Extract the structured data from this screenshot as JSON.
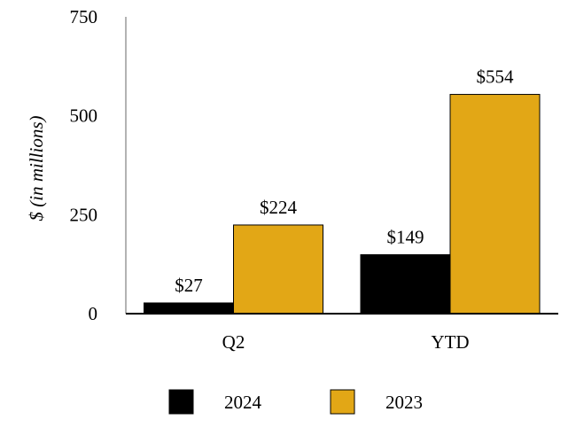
{
  "chart_data": {
    "type": "bar",
    "categories": [
      "Q2",
      "YTD"
    ],
    "series": [
      {
        "name": "2024",
        "values": [
          27,
          149
        ],
        "labels": [
          "$27",
          "$149"
        ],
        "color": "#000000"
      },
      {
        "name": "2023",
        "values": [
          224,
          554
        ],
        "labels": [
          "$224",
          "$554"
        ],
        "color": "#E2A716"
      }
    ],
    "ylabel": "$ (in millions)",
    "xlabel": "",
    "ylim": [
      0,
      750
    ],
    "yticks": [
      0,
      250,
      500,
      750
    ],
    "yticklabels": [
      "0",
      "250",
      "500",
      "750"
    ],
    "legend_position": "bottom",
    "grid": false
  }
}
